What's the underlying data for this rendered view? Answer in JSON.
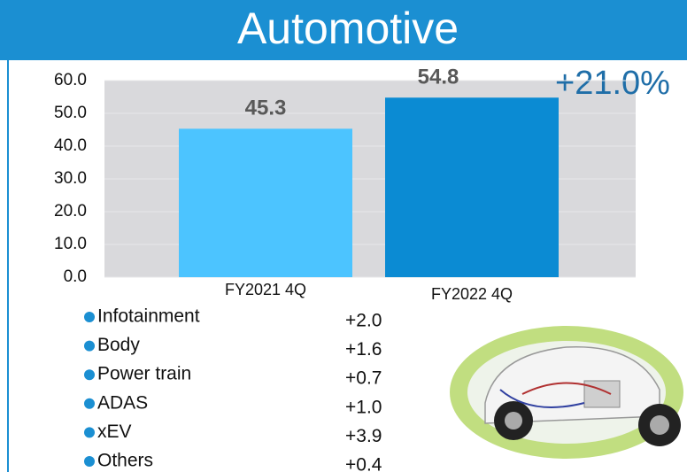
{
  "chart_data": {
    "type": "bar",
    "title": "Automotive",
    "categories": [
      "FY2021 4Q",
      "FY2022 4Q"
    ],
    "series": [
      {
        "name": "Automotive",
        "values": [
          45.3,
          54.8
        ],
        "colors": [
          "#4cc4ff",
          "#0b8bd3"
        ]
      }
    ],
    "ylim": [
      0,
      60
    ],
    "yticks": [
      {
        "value": 0,
        "label": "0.0"
      },
      {
        "value": 10,
        "label": "10.0"
      },
      {
        "value": 20,
        "label": "20.0"
      },
      {
        "value": 30,
        "label": "30.0"
      },
      {
        "value": 40,
        "label": "40.0"
      },
      {
        "value": 50,
        "label": "50.0"
      },
      {
        "value": 60,
        "label": "60.0"
      }
    ],
    "grid": true,
    "annotation": "+21.0%",
    "breakdown": [
      {
        "name": "Infotainment",
        "change": "+2.0"
      },
      {
        "name": "Body",
        "change": "+1.6"
      },
      {
        "name": "Power train",
        "change": "+0.7"
      },
      {
        "name": "ADAS",
        "change": "+1.0"
      },
      {
        "name": "xEV",
        "change": "+3.9"
      },
      {
        "name": "Others",
        "change": "+0.4"
      }
    ]
  }
}
